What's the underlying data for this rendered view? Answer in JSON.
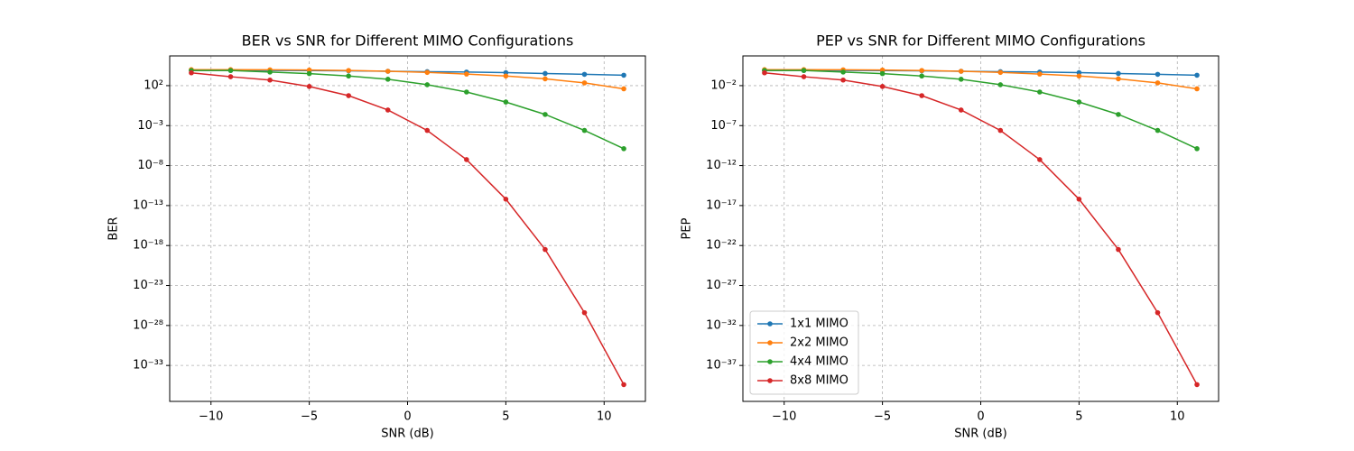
{
  "chart_data": [
    {
      "type": "line",
      "title": "BER vs SNR for Different MIMO Configurations",
      "xlabel": "SNR (dB)",
      "ylabel": "BER",
      "x": [
        -11,
        -9,
        -7,
        -5,
        -3,
        -1,
        1,
        3,
        5,
        7,
        9,
        11
      ],
      "series": [
        {
          "name": "1x1 MIMO",
          "color": "#1f77b4",
          "values": [
            7900,
            7900,
            7900,
            7600,
            7100,
            6300,
            5600,
            5000,
            4200,
            3300,
            2600,
            2000
          ]
        },
        {
          "name": "2x2 MIMO",
          "color": "#ff7f0e",
          "values": [
            10000,
            10000,
            9500,
            8900,
            7900,
            6300,
            4500,
            2800,
            1600,
            710,
            220,
            40
          ]
        },
        {
          "name": "4x4 MIMO",
          "color": "#2ca02c",
          "values": [
            7900,
            7900,
            5000,
            3200,
            1600,
            630,
            130,
            16,
            0.89,
            0.025,
            0.00025,
            1.3e-06
          ]
        },
        {
          "name": "8x8 MIMO",
          "color": "#d62728",
          "values": [
            4000,
            1300,
            500,
            79,
            5.6,
            0.089,
            0.00025,
            5.6e-08,
            6.3e-13,
            3.2e-19,
            4e-27,
            4e-36
          ]
        }
      ],
      "xlim": [
        -12.1,
        12.1
      ],
      "ylim": [
        3.2e-38,
        520000.0
      ],
      "yscale": "log",
      "grid": true,
      "xticks": [
        {
          "value": -10,
          "label": "−10"
        },
        {
          "value": -5,
          "label": "−5"
        },
        0,
        5,
        10
      ],
      "yticks": [
        {
          "value": 100,
          "label": "10²"
        },
        {
          "value": 0.001,
          "label": "10⁻³"
        },
        {
          "value": 1e-08,
          "label": "10⁻⁸"
        },
        {
          "value": 1e-13,
          "label": "10⁻¹³"
        },
        {
          "value": 1e-18,
          "label": "10⁻¹⁸"
        },
        {
          "value": 1e-23,
          "label": "10⁻²³"
        },
        {
          "value": 1e-28,
          "label": "10⁻²⁸"
        },
        {
          "value": 1e-33,
          "label": "10⁻³³"
        }
      ]
    },
    {
      "type": "line",
      "title": "PEP vs SNR for Different MIMO Configurations",
      "xlabel": "SNR (dB)",
      "ylabel": "PEP",
      "x": [
        -11,
        -9,
        -7,
        -5,
        -3,
        -1,
        1,
        3,
        5,
        7,
        9,
        11
      ],
      "series": [
        {
          "name": "1x1 MIMO",
          "color": "#1f77b4",
          "values": [
            0.79,
            0.79,
            0.79,
            0.76,
            0.71,
            0.63,
            0.56,
            0.5,
            0.42,
            0.33,
            0.26,
            0.2
          ]
        },
        {
          "name": "2x2 MIMO",
          "color": "#ff7f0e",
          "values": [
            1,
            1,
            0.95,
            0.89,
            0.79,
            0.63,
            0.45,
            0.28,
            0.16,
            0.071,
            0.022,
            0.004
          ]
        },
        {
          "name": "4x4 MIMO",
          "color": "#2ca02c",
          "values": [
            0.79,
            0.79,
            0.5,
            0.32,
            0.16,
            0.063,
            0.013,
            0.0016,
            8.9e-05,
            2.5e-06,
            2.5e-08,
            1.3e-10
          ]
        },
        {
          "name": "8x8 MIMO",
          "color": "#d62728",
          "values": [
            0.4,
            0.13,
            0.05,
            0.0079,
            0.00056,
            8.9e-06,
            2.5e-08,
            5.6e-12,
            6.3e-17,
            3.2e-23,
            4e-31,
            4e-40
          ]
        }
      ],
      "xlim": [
        -12.1,
        12.1
      ],
      "ylim": [
        3.2e-42,
        52
      ],
      "yscale": "log",
      "grid": true,
      "legend": "lower left",
      "xticks": [
        {
          "value": -10,
          "label": "−10"
        },
        {
          "value": -5,
          "label": "−5"
        },
        0,
        5,
        10
      ],
      "yticks": [
        {
          "value": 0.01,
          "label": "10⁻²"
        },
        {
          "value": 1e-07,
          "label": "10⁻⁷"
        },
        {
          "value": 1e-12,
          "label": "10⁻¹²"
        },
        {
          "value": 1e-17,
          "label": "10⁻¹⁷"
        },
        {
          "value": 1e-22,
          "label": "10⁻²²"
        },
        {
          "value": 1e-27,
          "label": "10⁻²⁷"
        },
        {
          "value": 1e-32,
          "label": "10⁻³²"
        },
        {
          "value": 1e-37,
          "label": "10⁻³⁷"
        }
      ]
    }
  ]
}
